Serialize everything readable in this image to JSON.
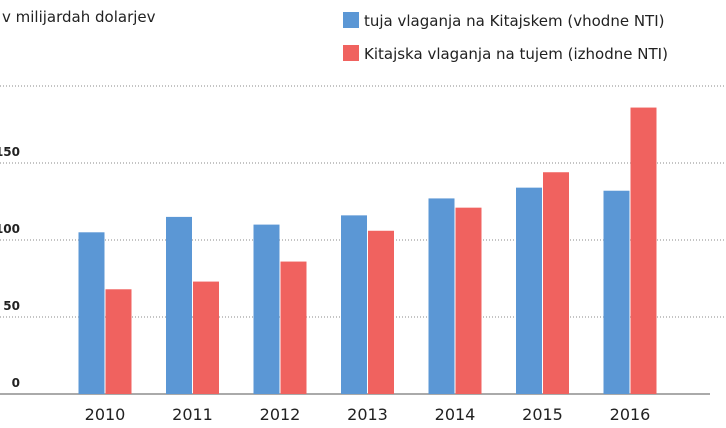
{
  "chart_data": {
    "type": "bar",
    "title": "v milijardah dolarjev",
    "categories": [
      "2010",
      "2011",
      "2012",
      "2013",
      "2014",
      "2015",
      "2016"
    ],
    "series": [
      {
        "name": "tuja vlaganja na Kitajskem (vhodne NTI)",
        "color": "#5b97d5",
        "values": [
          105,
          115,
          110,
          116,
          127,
          134,
          132
        ]
      },
      {
        "name": "Kitajska vlaganja na tujem (izhodne NTI)",
        "color": "#f0625f",
        "values": [
          68,
          73,
          86,
          106,
          121,
          144,
          186
        ]
      }
    ],
    "ylim": [
      0,
      200
    ],
    "yticks": [
      0,
      50,
      100,
      150
    ],
    "grid": true
  }
}
